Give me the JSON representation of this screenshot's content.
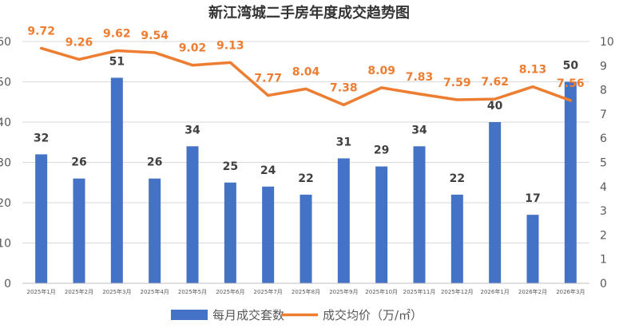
{
  "chart_data": {
    "type": "bar",
    "title": "新江湾城二手房年度成交趋势图",
    "categories": [
      "2025年1月",
      "2025年2月",
      "2025年3月",
      "2025年4月",
      "2025年5月",
      "2025年6月",
      "2025年7月",
      "2025年8月",
      "2025年9月",
      "2025年10月",
      "2025年11月",
      "2025年12月",
      "2026年1月",
      "2026年2月",
      "2026年3月"
    ],
    "series": [
      {
        "name": "每月成交套数",
        "type": "bar",
        "axis": "left",
        "color": "#4472C4",
        "values": [
          32,
          26,
          51,
          26,
          34,
          25,
          24,
          22,
          31,
          29,
          34,
          22,
          40,
          17,
          50
        ],
        "labels": [
          "32",
          "26",
          "51",
          "26",
          "34",
          "25",
          "24",
          "22",
          "31",
          "29",
          "34",
          "22",
          "40",
          "17",
          "50"
        ]
      },
      {
        "name": "成交均价（万/㎡）",
        "type": "line",
        "axis": "right",
        "color": "#ED7D31",
        "values": [
          9.72,
          9.26,
          9.62,
          9.54,
          9.02,
          9.13,
          7.77,
          8.04,
          7.38,
          8.09,
          7.83,
          7.59,
          7.62,
          8.13,
          7.56
        ],
        "labels": [
          "9.72",
          "9.26",
          "9.62",
          "9.54",
          "9.02",
          "9.13",
          "7.77",
          "8.04",
          "7.38",
          "8.09",
          "7.83",
          "7.59",
          "7.62",
          "8.13",
          "7.56"
        ]
      }
    ],
    "y_left": {
      "ylim": [
        0,
        60
      ],
      "ticks": [
        "0",
        "10",
        "20",
        "30",
        "40",
        "50",
        "60"
      ]
    },
    "y_right": {
      "ylim": [
        0,
        10
      ],
      "ticks": [
        "0",
        "1",
        "2",
        "3",
        "4",
        "5",
        "6",
        "7",
        "8",
        "9",
        "10"
      ]
    },
    "grid": true,
    "legend_position": "bottom"
  }
}
